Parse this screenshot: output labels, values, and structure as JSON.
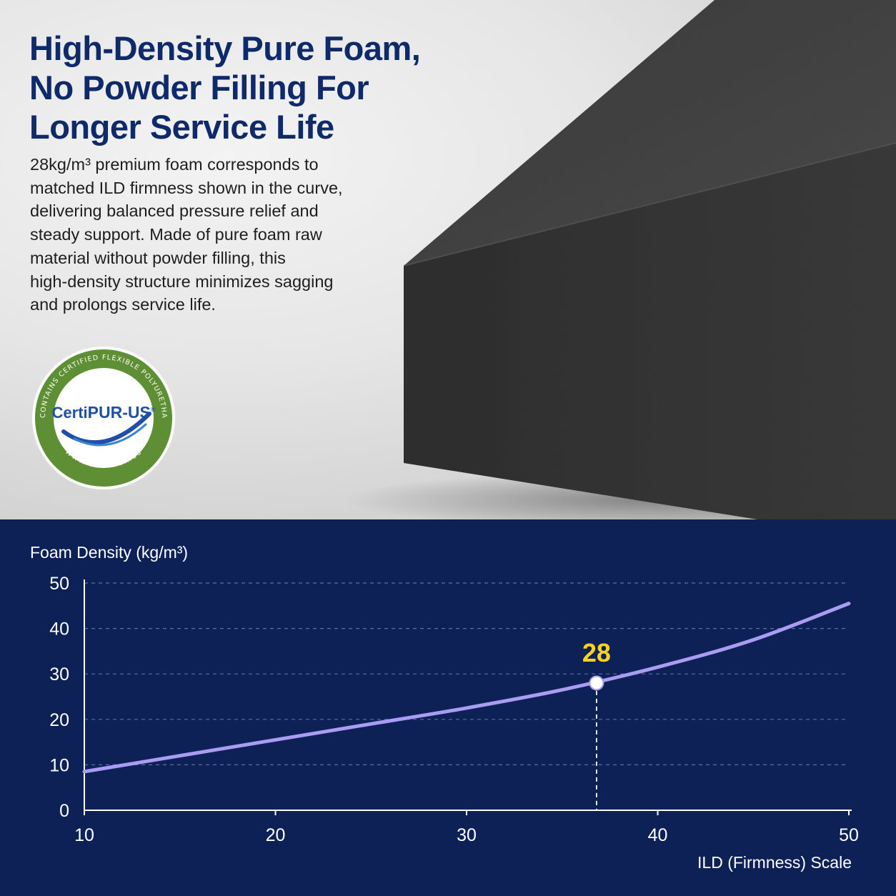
{
  "headline": "High-Density Pure Foam,\nNo Powder Filling For\nLonger Service Life",
  "body": "28kg/m³ premium foam corresponds to\nmatched ILD firmness shown in the curve,\ndelivering balanced pressure relief and\nsteady support. Made of pure foam raw\nmaterial without powder filling, this\nhigh-density structure minimizes sagging\nand prolongs service life.",
  "badge": {
    "brand_prefix": "Certi",
    "brand_main": "PUR-US",
    "registered": "®",
    "ring_text": "CONTAINS CERTIFIED FLEXIBLE POLYURETHANE FOAM",
    "url": "WWW.CERTIPUR.US"
  },
  "colors": {
    "headline": "#0f2a6b",
    "panel": "#0d2157",
    "curve": "#a99cf2",
    "highlight": "#ffd21f",
    "badge_green": "#5f8f34"
  },
  "chart_data": {
    "type": "line",
    "title": "",
    "ylabel": "Foam Density (kg/m³)",
    "xlabel": "ILD (Firmness) Scale",
    "xlim": [
      10,
      50
    ],
    "ylim": [
      0,
      50
    ],
    "xticks": [
      10,
      20,
      30,
      40,
      50
    ],
    "yticks": [
      0,
      10,
      20,
      30,
      40,
      50
    ],
    "grid": true,
    "series": [
      {
        "x": [
          10,
          15,
          20,
          25,
          30,
          35,
          40,
          45,
          50
        ],
        "y": [
          8.5,
          12,
          15.5,
          19,
          22.5,
          26.5,
          31.5,
          37.5,
          45.5
        ]
      }
    ],
    "highlight": {
      "x": 36.8,
      "y": 28,
      "label": "28"
    }
  }
}
